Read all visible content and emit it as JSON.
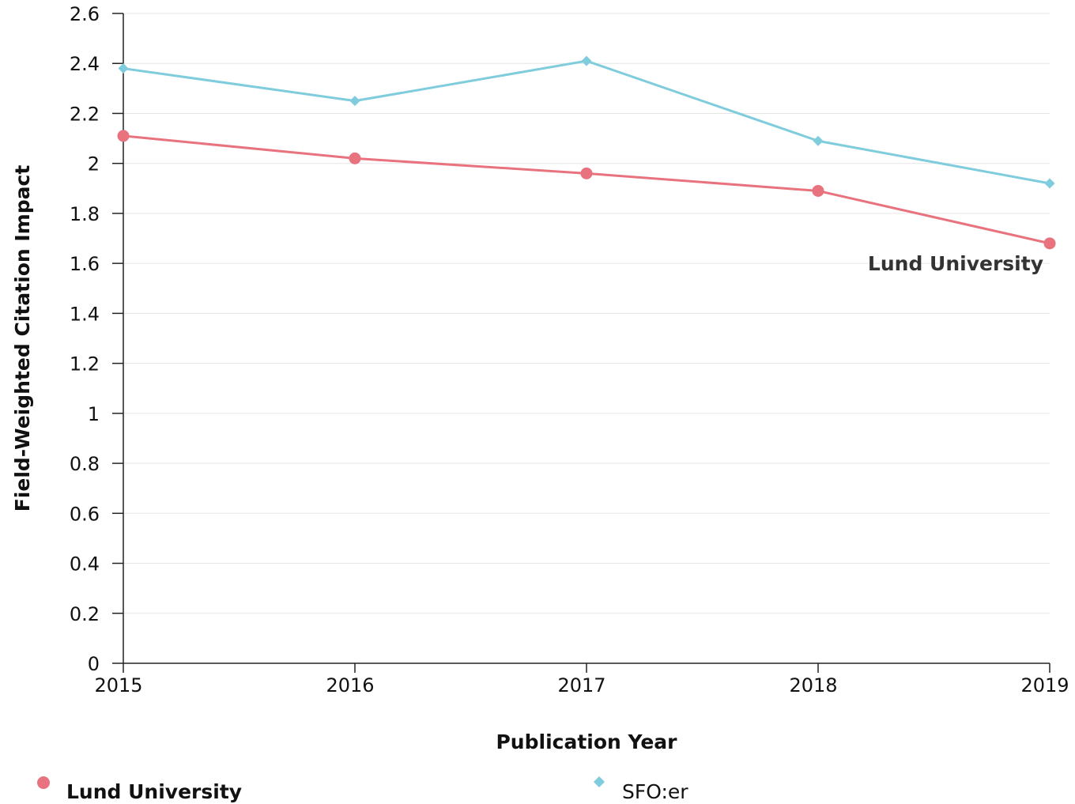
{
  "chart_data": {
    "type": "line",
    "title": "",
    "xlabel": "Publication Year",
    "ylabel": "Field-Weighted Citation Impact",
    "categories": [
      "2015",
      "2016",
      "2017",
      "2018",
      "2019"
    ],
    "ylim": [
      0,
      2.6
    ],
    "yticks": [
      "0",
      "0.2",
      "0.4",
      "0.6",
      "0.8",
      "1",
      "1.2",
      "1.4",
      "1.6",
      "1.8",
      "2",
      "2.2",
      "2.4",
      "2.6"
    ],
    "grid": true,
    "legend_position": "bottom",
    "series": [
      {
        "name": "Lund University",
        "values": [
          2.11,
          2.02,
          1.96,
          1.89,
          1.68
        ],
        "color": "#e8737f",
        "marker": "circle"
      },
      {
        "name": "SFO:er",
        "values": [
          2.38,
          2.25,
          2.41,
          2.09,
          1.92
        ],
        "color": "#7fccdc",
        "marker": "diamond"
      }
    ],
    "annotations": [
      {
        "text": "Lund University",
        "series": 0,
        "point": 4
      }
    ]
  }
}
